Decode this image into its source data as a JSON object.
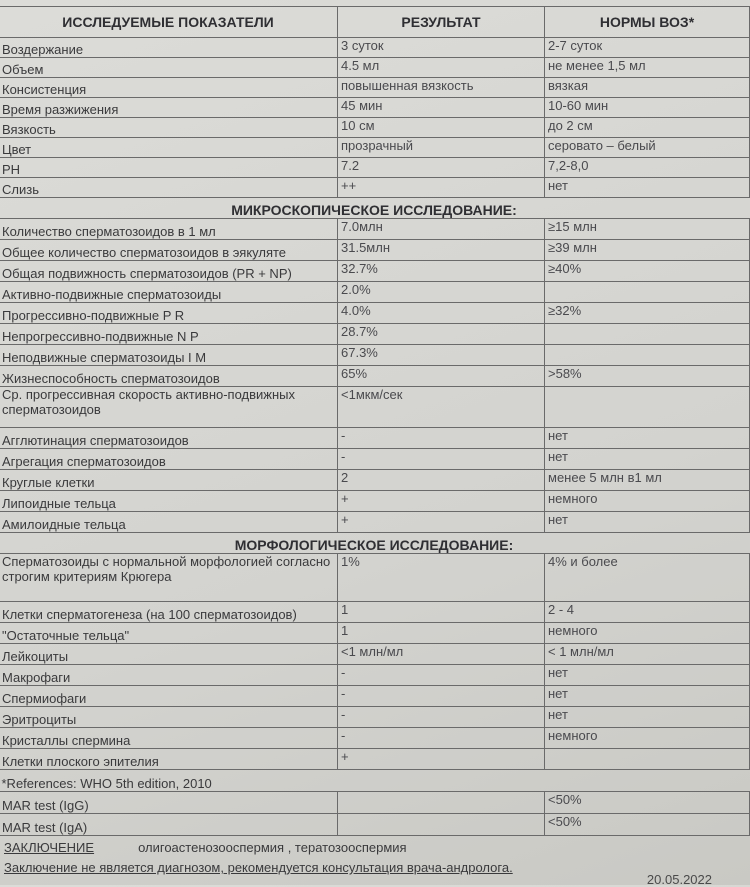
{
  "header": {
    "col1": "ИССЛЕДУЕМЫЕ ПОКАЗАТЕЛИ",
    "col2": "РЕЗУЛЬТАТ",
    "col3": "НОРМЫ ВОЗ*"
  },
  "macro_rows": [
    {
      "name": "Воздержание",
      "result": "3 суток",
      "norm": "2-7 суток"
    },
    {
      "name": "Объем",
      "result": "4.5 мл",
      "norm": "не менее 1,5 мл"
    },
    {
      "name": "Консистенция",
      "result": "повышенная  вязкость",
      "norm": "вязкая"
    },
    {
      "name": "Время разжижения",
      "result": "45 мин",
      "norm": "10-60 мин"
    },
    {
      "name": "Вязкость",
      "result": "10 см",
      "norm": "до 2 см"
    },
    {
      "name": "Цвет",
      "result": "прозрачный",
      "norm": "серовато – белый"
    },
    {
      "name": "PH",
      "result": "7.2",
      "norm": "7,2-8,0"
    },
    {
      "name": "Слизь",
      "result": "++",
      "norm": "нет"
    }
  ],
  "micro_title": "МИКРОСКОПИЧЕСКОЕ ИССЛЕДОВАНИЕ:",
  "micro_rows": [
    {
      "name": "Количество сперматозоидов в 1 мл",
      "result": "7.0млн",
      "norm": "≥15 млн"
    },
    {
      "name": "Общее количество сперматозоидов в эякуляте",
      "result": "31.5млн",
      "norm": "≥39 млн"
    },
    {
      "name": "Общая подвижность сперматозоидов (PR + NP)",
      "result": "32.7%",
      "norm": "≥40%"
    },
    {
      "name": "Активно-подвижные сперматозоиды",
      "result": "2.0%",
      "norm": ""
    },
    {
      "name": "Прогрессивно-подвижные P R",
      "result": "4.0%",
      "norm": "≥32%"
    },
    {
      "name": "Непрогрессивно-подвижные N P",
      "result": "28.7%",
      "norm": ""
    },
    {
      "name": "Неподвижные сперматозоиды I M",
      "result": "67.3%",
      "norm": ""
    },
    {
      "name": "Жизнеспособность  сперматозоидов",
      "result": "65%",
      "norm": ">58%"
    },
    {
      "name": "Ср. прогрессивная скорость активно-подвижных сперматозоидов",
      "result": "<1мкм/сек",
      "norm": ""
    },
    {
      "name": "Агглютинация сперматозоидов",
      "result": "-",
      "norm": "нет"
    },
    {
      "name": "Агрегация сперматозоидов",
      "result": "-",
      "norm": "нет"
    },
    {
      "name": "Круглые клетки",
      "result": "2",
      "norm": "менее 5 млн в1 мл"
    },
    {
      "name": "Липоидные тельца",
      "result": "+",
      "norm": "немного"
    },
    {
      "name": "Амилоидные тельца",
      "result": "+",
      "norm": "нет"
    }
  ],
  "morph_title": "МОРФОЛОГИЧЕСКОЕ ИССЛЕДОВАНИЕ:",
  "morph_rows": [
    {
      "name": "Сперматозоиды с нормальной морфологией согласно строгим критериям Крюгера",
      "result": "1%",
      "norm": "4% и более"
    },
    {
      "name": "Клетки сперматогенеза (на 100 сперматозоидов)",
      "result": "1",
      "norm": "2 - 4"
    },
    {
      "name": "\"Остаточные тельца\"",
      "result": "1",
      "norm": "немного"
    },
    {
      "name": "Лейкоциты",
      "result": "<1 млн/мл",
      "norm": "< 1 млн/мл"
    },
    {
      "name": "Макрофаги",
      "result": "-",
      "norm": "нет"
    },
    {
      "name": "Спермиофаги",
      "result": "-",
      "norm": "нет"
    },
    {
      "name": "Эритроциты",
      "result": "-",
      "norm": "нет"
    },
    {
      "name": "Кристаллы спермина",
      "result": "-",
      "norm": "немного"
    },
    {
      "name": "Клетки плоского эпителия",
      "result": "+",
      "norm": ""
    }
  ],
  "references": "*References: WHO 5th edition, 2010",
  "mar_rows": [
    {
      "name": "MAR test (IgG)",
      "result": "",
      "norm": "<50%"
    },
    {
      "name": "MAR test (IgA)",
      "result": "",
      "norm": "<50%"
    }
  ],
  "conclusion": {
    "label": "ЗАКЛЮЧЕНИЕ",
    "value": "олигоастенозооспермия , тератозооспермия"
  },
  "disclaimer": "Заключение не является диагнозом, рекомендуется консультация врача-андролога.",
  "date": "20.05.2022"
}
